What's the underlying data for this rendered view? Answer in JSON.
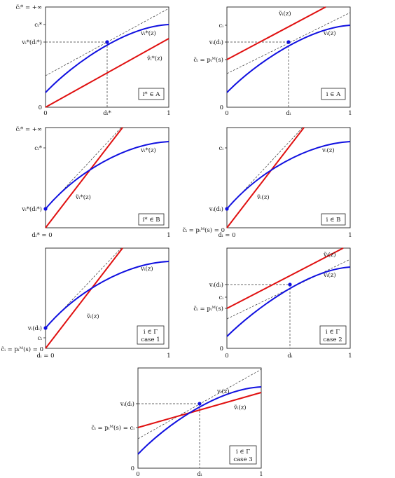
{
  "panels": [
    {
      "id": "p1",
      "box_lines": [
        "i* ∈ A"
      ],
      "yaxis": {
        "top": "c̃ᵢ* = +∞",
        "c": "cᵢ*",
        "v": "vᵢ*(dᵢ*)",
        "zero": "0"
      },
      "xaxis": {
        "left": "0",
        "mid": "dᵢ*",
        "right": "1"
      },
      "curve_labels": {
        "v": "vᵢ*(z)",
        "vt": "ṽᵢ*(z)"
      }
    },
    {
      "id": "p2",
      "box_lines": [
        "i ∈ A"
      ],
      "yaxis": {
        "c": "cᵢ",
        "v": "vᵢ(dᵢ)",
        "p": "c̃ᵢ = pᵢᴹ(s)",
        "zero": "0"
      },
      "xaxis": {
        "left": "0",
        "mid": "dᵢ",
        "right": "1"
      },
      "curve_labels": {
        "v": "vᵢ(z)",
        "vt": "ṽᵢ(z)"
      }
    },
    {
      "id": "p3",
      "box_lines": [
        "i* ∈ B"
      ],
      "yaxis": {
        "top": "c̃ᵢ* = +∞",
        "c": "cᵢ*",
        "v": "vᵢ*(dᵢ*)"
      },
      "xaxis": {
        "left": "dᵢ* = 0",
        "right": "1"
      },
      "curve_labels": {
        "v": "vᵢ*(z)",
        "vt": "ṽᵢ*(z)"
      }
    },
    {
      "id": "p4",
      "box_lines": [
        "i ∈ B"
      ],
      "yaxis": {
        "c": "cᵢ",
        "v": "vᵢ(dᵢ)",
        "p": "c̃ᵢ = pᵢᴹ(s) = 0"
      },
      "xaxis": {
        "left": "dᵢ = 0",
        "right": "1"
      },
      "curve_labels": {
        "v": "vᵢ(z)",
        "vt": "ṽᵢ(z)"
      }
    },
    {
      "id": "p5",
      "box_lines": [
        "i ∈ Γ",
        "case 1"
      ],
      "yaxis": {
        "v": "vᵢ(dᵢ)",
        "c": "cᵢ",
        "p": "c̃ᵢ = pᵢᴹ(s) = 0"
      },
      "xaxis": {
        "left": "dᵢ = 0",
        "right": "1"
      },
      "curve_labels": {
        "v": "vᵢ(z)",
        "vt": "ṽᵢ(z)"
      }
    },
    {
      "id": "p6",
      "box_lines": [
        "i ∈ Γ",
        "case 2"
      ],
      "yaxis": {
        "v": "vᵢ(dᵢ)",
        "c": "cᵢ",
        "p": "c̃ᵢ = pᵢᴹ(s)",
        "zero": "0"
      },
      "xaxis": {
        "left": "0",
        "mid": "dᵢ",
        "right": "1"
      },
      "curve_labels": {
        "v": "vᵢ(z)",
        "vt": "ṽᵢ(z)"
      }
    },
    {
      "id": "p7",
      "box_lines": [
        "i ∈ Γ",
        "case 3"
      ],
      "yaxis": {
        "v": "vᵢ(dᵢ)",
        "p": "c̃ᵢ = pᵢᴹ(s) = cᵢ",
        "zero": "0"
      },
      "xaxis": {
        "left": "0",
        "mid": "dᵢ",
        "right": "1"
      },
      "curve_labels": {
        "v": "vᵢ(z)",
        "vt": "ṽᵢ(z)"
      }
    }
  ]
}
